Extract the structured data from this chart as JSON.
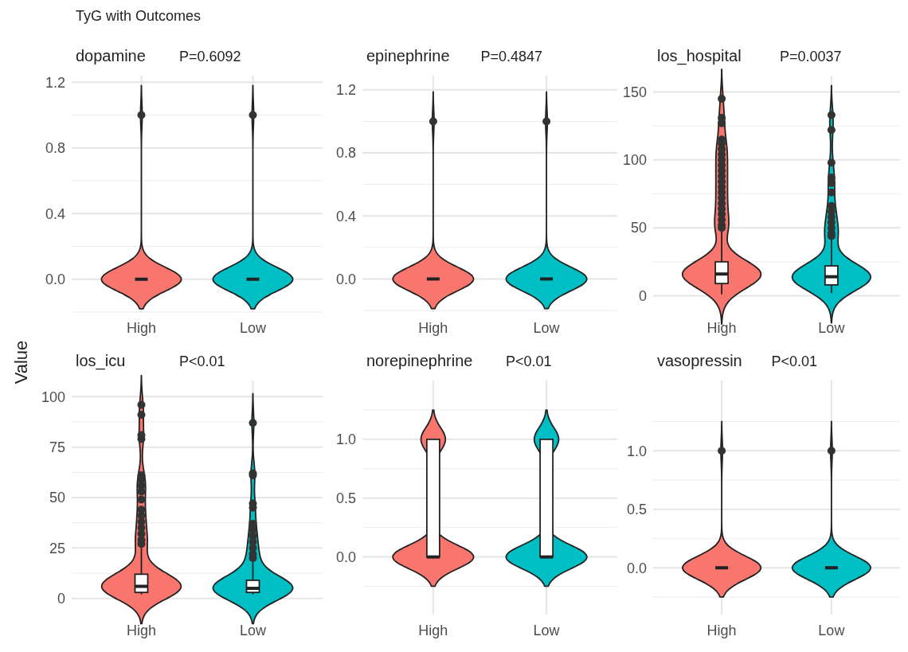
{
  "chart_data": [
    {
      "type": "box",
      "title": "dopamine",
      "annotations": [
        "P=0.6092",
        "TyG with Outcomes"
      ],
      "ylabel": "Value",
      "categories": [
        "High",
        "Low"
      ],
      "boxes": [
        {
          "low": 0,
          "q1": 0,
          "median": 0,
          "q3": 0,
          "high": 0,
          "outliers": [
            1
          ]
        },
        {
          "low": 0,
          "q1": 0,
          "median": 0,
          "q3": 0,
          "high": 0,
          "outliers": [
            1
          ]
        }
      ],
      "ylim": [
        -0.2,
        1.24
      ],
      "yticks": [
        {
          "value": 0,
          "label": "0.0"
        },
        {
          "value": 0.4,
          "label": "0.4"
        },
        {
          "value": 0.8,
          "label": "0.8"
        },
        {
          "value": 1.2,
          "label": "1.2"
        }
      ],
      "grid": true
    },
    {
      "type": "box",
      "title": "epinephrine",
      "annotations": [
        "P=0.4847"
      ],
      "categories": [
        "High",
        "Low"
      ],
      "boxes": [
        {
          "low": 0,
          "q1": 0,
          "median": 0,
          "q3": 0,
          "high": 0,
          "outliers": [
            1
          ]
        },
        {
          "low": 0,
          "q1": 0,
          "median": 0,
          "q3": 0,
          "high": 0,
          "outliers": [
            1
          ]
        }
      ],
      "ylim": [
        -0.21,
        1.29
      ],
      "yticks": [
        {
          "value": 0,
          "label": "0.0"
        },
        {
          "value": 0.4,
          "label": "0.4"
        },
        {
          "value": 0.8,
          "label": "0.8"
        },
        {
          "value": 1.2,
          "label": "1.2"
        }
      ],
      "grid": true
    },
    {
      "type": "box",
      "title": "los_hospital",
      "annotations": [
        "P=0.0037"
      ],
      "categories": [
        "High",
        "Low"
      ],
      "colors": [
        "#ffffff",
        "#ffffff"
      ],
      "boxes": [
        {
          "low": 1,
          "q1": 9,
          "median": 16,
          "q3": 25,
          "high": 48,
          "outliers": [
            50,
            52,
            56,
            60,
            64,
            68,
            72,
            76,
            80,
            84,
            88,
            92,
            96,
            100,
            104,
            108,
            112,
            115,
            127,
            131,
            145
          ]
        },
        {
          "low": 2,
          "q1": 8,
          "median": 14,
          "q3": 22,
          "high": 42,
          "outliers": [
            44,
            46,
            50,
            54,
            58,
            62,
            66,
            76,
            83,
            87,
            98,
            122,
            133
          ]
        }
      ],
      "ylim": [
        -12,
        162
      ],
      "yticks": [
        0,
        50,
        100,
        150
      ],
      "grid": true
    },
    {
      "type": "box",
      "title": "los_icu",
      "annotations": [
        "P<0.01"
      ],
      "categories": [
        "High",
        "Low"
      ],
      "colors": [
        "#ffffff",
        "#ffffff"
      ],
      "boxes": [
        {
          "low": 2,
          "q1": 3,
          "median": 6,
          "q3": 12,
          "high": 25,
          "outliers": [
            27,
            29,
            32,
            35,
            38,
            41,
            44,
            49,
            53,
            56,
            59,
            61,
            79,
            81,
            91,
            96
          ]
        },
        {
          "low": 2,
          "q1": 3,
          "median": 5,
          "q3": 9,
          "high": 19,
          "outliers": [
            20,
            22,
            25,
            28,
            31,
            34,
            37,
            45,
            47,
            61,
            62,
            87
          ]
        }
      ],
      "ylim": [
        -8,
        108
      ],
      "yticks": [
        0,
        25,
        50,
        75,
        100
      ],
      "grid": true
    },
    {
      "type": "box",
      "title": "norepinephrine",
      "annotations": [
        "P<0.01"
      ],
      "categories": [
        "High",
        "Low"
      ],
      "colors": [
        "#ffffff",
        "#ffffff"
      ],
      "boxes": [
        {
          "low": 0,
          "q1": 0,
          "median": 0,
          "q3": 1,
          "high": 1
        },
        {
          "low": 0,
          "q1": 0,
          "median": 0,
          "q3": 1,
          "high": 1
        }
      ],
      "ylim": [
        -0.49,
        1.5
      ],
      "yticks": [
        {
          "value": 0,
          "label": "0.0"
        },
        {
          "value": 0.5,
          "label": "0.5"
        },
        {
          "value": 1,
          "label": "1.0"
        }
      ],
      "grid": true
    },
    {
      "type": "box",
      "title": "vasopressin",
      "annotations": [
        "P<0.01"
      ],
      "categories": [
        "High",
        "Low"
      ],
      "boxes": [
        {
          "low": 0,
          "q1": 0,
          "median": 0,
          "q3": 0,
          "high": 0,
          "outliers": [
            1
          ]
        },
        {
          "low": 0,
          "q1": 0,
          "median": 0,
          "q3": 0,
          "high": 0,
          "outliers": [
            1
          ]
        }
      ],
      "ylim": [
        -0.4,
        1.6
      ],
      "yticks": [
        {
          "value": 0,
          "label": "0.0"
        },
        {
          "value": 0.5,
          "label": "0.5"
        },
        {
          "value": 1,
          "label": "1.0"
        }
      ],
      "grid": true
    }
  ]
}
